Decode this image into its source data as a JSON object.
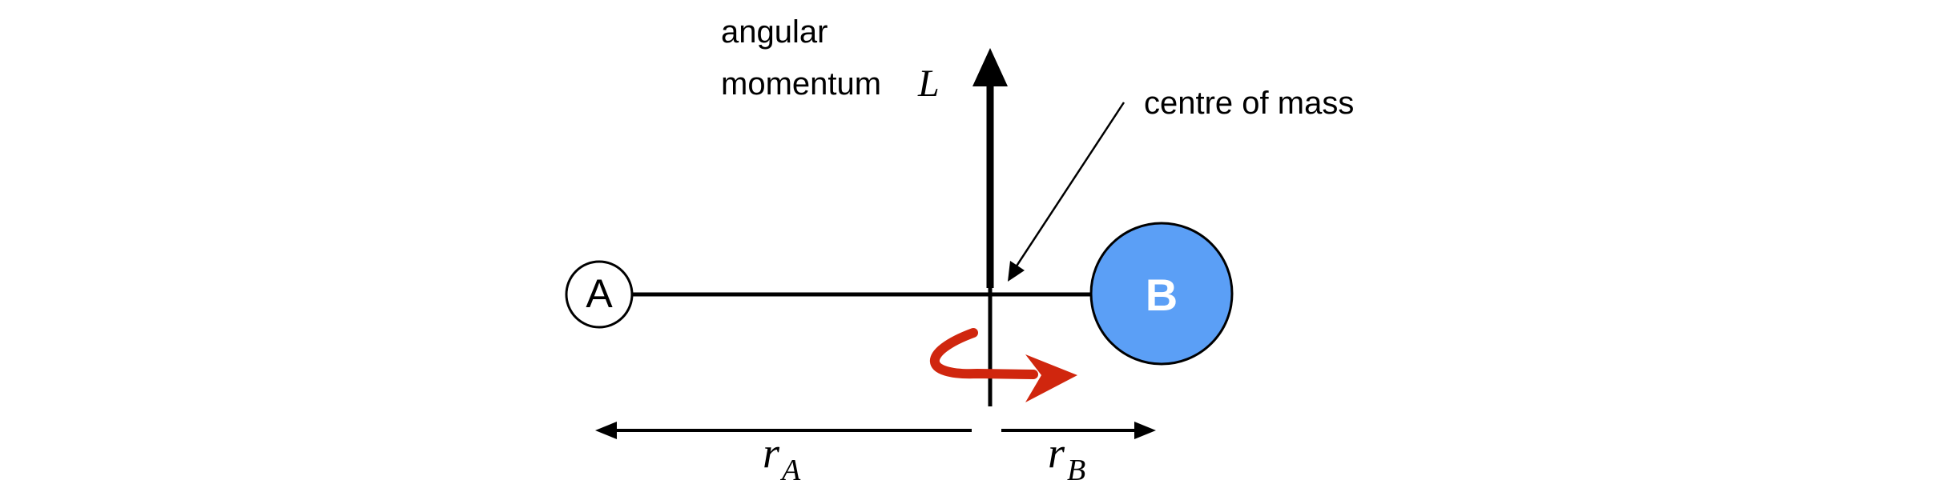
{
  "diagram": {
    "angular_momentum": {
      "line1": "angular",
      "line2": "momentum",
      "symbol": "L"
    },
    "centre_of_mass_label": "centre of mass",
    "body_a": {
      "label": "A",
      "fill": "#ffffff"
    },
    "body_b": {
      "label": "B",
      "fill": "#5b9ff6"
    },
    "distance_a": {
      "symbol": "r",
      "subscript": "A"
    },
    "distance_b": {
      "symbol": "r",
      "subscript": "B"
    },
    "colors": {
      "line": "#000000",
      "rotation_arrow": "#d0260e",
      "body_b_label": "#ffffff"
    }
  }
}
